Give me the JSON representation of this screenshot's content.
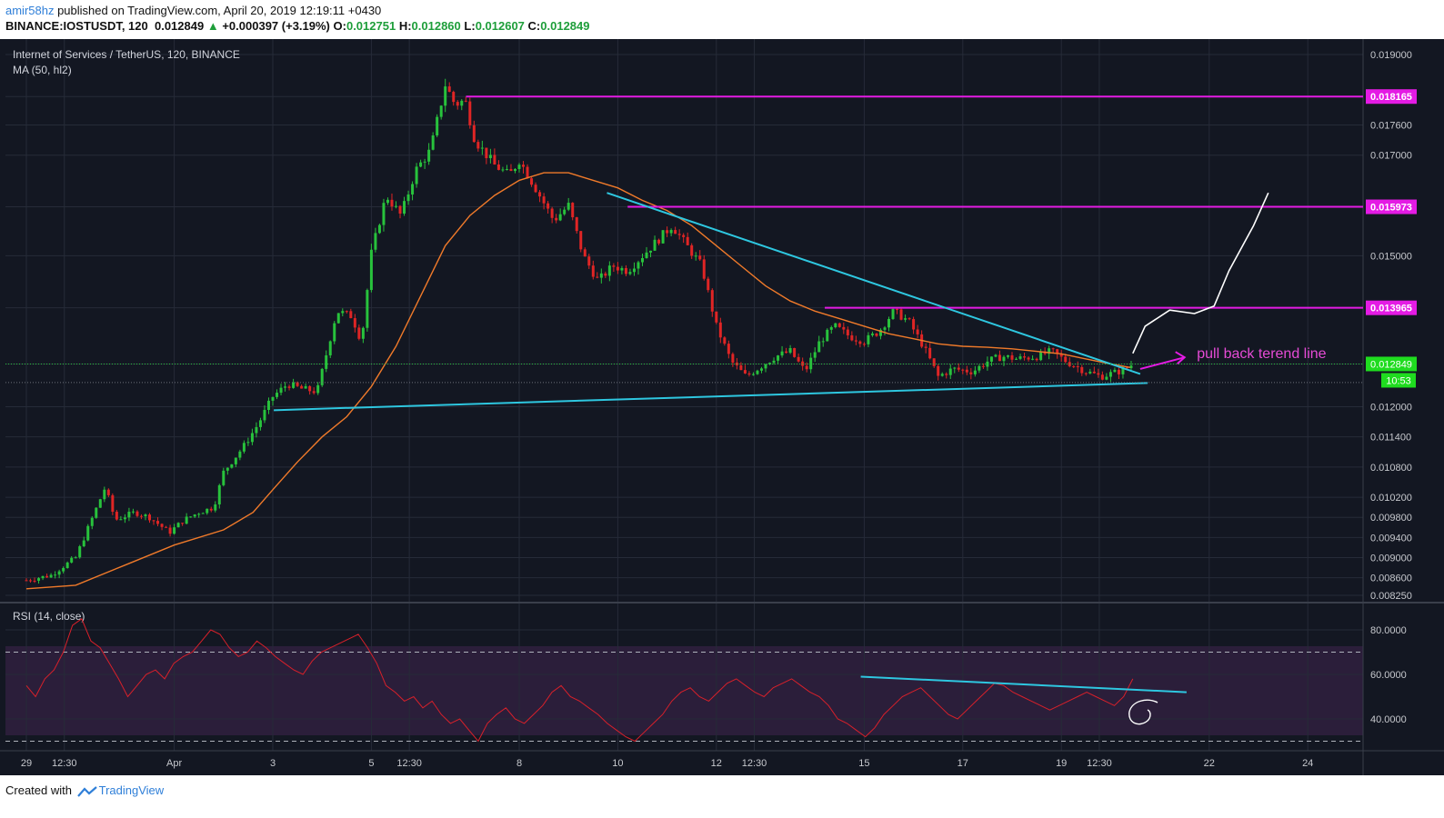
{
  "header": {
    "user": "amir58hz",
    "published": " published on TradingView.com, April 20, 2019 12:19:11 +0430",
    "symbol": "BINANCE:IOSTUSDT, 120",
    "last": "0.012849",
    "arrow": "▲",
    "change": "+0.000397 (+3.19%)",
    "o_label": "O:",
    "o": "0.012751",
    "h_label": "H:",
    "h": "0.012860",
    "l_label": "L:",
    "l": "0.012607",
    "c_label": "C:",
    "c": "0.012849"
  },
  "legend": {
    "title": "Internet of Services / TetherUS, 120, BINANCE",
    "ma": "MA (50, hl2)",
    "rsi": "RSI (14, close)"
  },
  "footer": {
    "created": "Created with",
    "brand": "TradingView"
  },
  "colors": {
    "background": "#131722",
    "up": "#28c23c",
    "down": "#e02525",
    "ma": "#f07a2a",
    "trendline": "#2ec7e0",
    "level": "#e41be4",
    "rsi": "#d8202a",
    "rsi_band": "#2b1e3a",
    "price_tag": "#1fdc1f"
  },
  "chart_data": [
    {
      "type": "candlestick",
      "title": "Internet of Services / TetherUS, 120, BINANCE",
      "ylim": [
        0.00818,
        0.01938
      ],
      "y_ticks": [
        "0.019000",
        "0.018165",
        "0.017600",
        "0.017000",
        "0.015973",
        "0.015000",
        "0.013965",
        "0.012849",
        "0.012000",
        "0.011400",
        "0.010800",
        "0.010200",
        "0.009800",
        "0.009400",
        "0.009000",
        "0.008600",
        "0.008250"
      ],
      "y_tick_values": [
        0.019,
        0.018165,
        0.0176,
        0.017,
        0.015973,
        0.015,
        0.013965,
        0.012849,
        0.012,
        0.0114,
        0.0108,
        0.0102,
        0.0098,
        0.0094,
        0.009,
        0.0086,
        0.00825
      ],
      "x_ticks": [
        "29",
        "12:30",
        "Apr",
        "3",
        "5",
        "12:30",
        "8",
        "10",
        "12",
        "12:30",
        "15",
        "17",
        "19",
        "12:30",
        "22",
        "24"
      ],
      "x_tick_days": [
        0,
        0.77,
        3.0,
        5.0,
        7.0,
        7.77,
        10.0,
        12.0,
        14.0,
        14.77,
        17.0,
        19.0,
        21.0,
        21.77,
        24.0,
        26.0
      ],
      "price_series": [
        [
          0.0,
          0.00855
        ],
        [
          0.5,
          0.00865
        ],
        [
          1.0,
          0.009
        ],
        [
          1.3,
          0.0097
        ],
        [
          1.6,
          0.0104
        ],
        [
          1.8,
          0.00975
        ],
        [
          2.2,
          0.0099
        ],
        [
          2.5,
          0.0098
        ],
        [
          2.9,
          0.0095
        ],
        [
          3.2,
          0.00975
        ],
        [
          3.5,
          0.0099
        ],
        [
          3.8,
          0.01
        ],
        [
          4.0,
          0.0107
        ],
        [
          4.4,
          0.0112
        ],
        [
          4.7,
          0.01165
        ],
        [
          5.0,
          0.0122
        ],
        [
          5.3,
          0.01245
        ],
        [
          5.6,
          0.01235
        ],
        [
          5.9,
          0.0123
        ],
        [
          6.3,
          0.0139
        ],
        [
          6.6,
          0.0138
        ],
        [
          6.8,
          0.0133
        ],
        [
          7.0,
          0.01505
        ],
        [
          7.3,
          0.0162
        ],
        [
          7.6,
          0.0158
        ],
        [
          7.9,
          0.0167
        ],
        [
          8.2,
          0.0171
        ],
        [
          8.5,
          0.0184
        ],
        [
          8.7,
          0.018
        ],
        [
          8.9,
          0.0181
        ],
        [
          9.1,
          0.0173
        ],
        [
          9.5,
          0.0168
        ],
        [
          9.8,
          0.0166
        ],
        [
          10.0,
          0.0169
        ],
        [
          10.3,
          0.0164
        ],
        [
          10.7,
          0.0157
        ],
        [
          11.0,
          0.016
        ],
        [
          11.3,
          0.015
        ],
        [
          11.6,
          0.0145
        ],
        [
          11.9,
          0.0148
        ],
        [
          12.2,
          0.0147
        ],
        [
          12.5,
          0.015
        ],
        [
          12.8,
          0.0153
        ],
        [
          13.1,
          0.0156
        ],
        [
          13.4,
          0.0152
        ],
        [
          13.7,
          0.0148
        ],
        [
          14.0,
          0.0136
        ],
        [
          14.3,
          0.0129
        ],
        [
          14.6,
          0.0126
        ],
        [
          14.9,
          0.0128
        ],
        [
          15.2,
          0.013
        ],
        [
          15.5,
          0.0131
        ],
        [
          15.8,
          0.0127
        ],
        [
          16.1,
          0.0133
        ],
        [
          16.4,
          0.0136
        ],
        [
          16.7,
          0.0134
        ],
        [
          17.0,
          0.0133
        ],
        [
          17.3,
          0.0135
        ],
        [
          17.6,
          0.0139
        ],
        [
          17.9,
          0.0137
        ],
        [
          18.2,
          0.0132
        ],
        [
          18.5,
          0.0126
        ],
        [
          18.8,
          0.01275
        ],
        [
          19.2,
          0.0127
        ],
        [
          19.5,
          0.0129
        ],
        [
          19.8,
          0.013
        ],
        [
          20.1,
          0.01295
        ],
        [
          20.5,
          0.013
        ],
        [
          20.8,
          0.0131
        ],
        [
          21.1,
          0.0129
        ],
        [
          21.5,
          0.0127
        ],
        [
          21.8,
          0.0126
        ],
        [
          22.1,
          0.01268
        ],
        [
          22.3,
          0.01275
        ],
        [
          22.45,
          0.01285
        ]
      ],
      "ma_label": "MA (50, hl2)",
      "ma_series": [
        [
          0.0,
          0.00838
        ],
        [
          1.0,
          0.00845
        ],
        [
          2.0,
          0.00885
        ],
        [
          3.0,
          0.00925
        ],
        [
          4.0,
          0.00955
        ],
        [
          4.6,
          0.0099
        ],
        [
          5.0,
          0.01035
        ],
        [
          5.5,
          0.0109
        ],
        [
          6.0,
          0.0114
        ],
        [
          6.5,
          0.0118
        ],
        [
          7.0,
          0.0124
        ],
        [
          7.5,
          0.0132
        ],
        [
          8.0,
          0.0142
        ],
        [
          8.5,
          0.0152
        ],
        [
          9.0,
          0.0158
        ],
        [
          9.5,
          0.0162
        ],
        [
          10.0,
          0.0165
        ],
        [
          10.5,
          0.01665
        ],
        [
          11.0,
          0.01665
        ],
        [
          11.5,
          0.0165
        ],
        [
          12.0,
          0.01635
        ],
        [
          12.5,
          0.0161
        ],
        [
          13.0,
          0.0159
        ],
        [
          13.5,
          0.0156
        ],
        [
          14.0,
          0.0152
        ],
        [
          14.5,
          0.0148
        ],
        [
          15.0,
          0.0144
        ],
        [
          15.5,
          0.0141
        ],
        [
          16.0,
          0.0139
        ],
        [
          16.5,
          0.01375
        ],
        [
          17.0,
          0.0136
        ],
        [
          17.5,
          0.01345
        ],
        [
          18.0,
          0.01335
        ],
        [
          18.5,
          0.01325
        ],
        [
          19.0,
          0.0132
        ],
        [
          19.5,
          0.01318
        ],
        [
          20.0,
          0.01315
        ],
        [
          20.5,
          0.0131
        ],
        [
          21.0,
          0.01305
        ],
        [
          21.5,
          0.01295
        ],
        [
          22.0,
          0.01285
        ],
        [
          22.4,
          0.01278
        ]
      ],
      "levels": [
        {
          "value": 0.018165,
          "label": "0.018165",
          "from_day": 8.92
        },
        {
          "value": 0.015973,
          "label": "0.015973",
          "from_day": 12.2
        },
        {
          "value": 0.013965,
          "label": "0.013965",
          "from_day": 16.2
        }
      ],
      "trendlines": [
        {
          "from": [
            5.02,
            0.01193
          ],
          "to": [
            22.75,
            0.01247
          ]
        },
        {
          "from": [
            11.78,
            0.01625
          ],
          "to": [
            22.6,
            0.01265
          ]
        }
      ],
      "last_price": {
        "value": 0.012849,
        "label": "0.012849",
        "countdown": "10:53"
      },
      "annotation": "pull back terend line",
      "projection": [
        [
          22.45,
          0.01306
        ],
        [
          22.7,
          0.0136
        ],
        [
          23.2,
          0.01392
        ],
        [
          23.7,
          0.01385
        ],
        [
          24.1,
          0.014
        ],
        [
          24.4,
          0.0147
        ],
        [
          24.9,
          0.0156
        ],
        [
          25.2,
          0.01625
        ]
      ]
    },
    {
      "type": "line",
      "title": "RSI (14, close)",
      "ylim": [
        22,
        87
      ],
      "y_ticks": [
        "80.0000",
        "60.0000",
        "40.0000"
      ],
      "y_tick_values": [
        80,
        60,
        40
      ],
      "band": [
        30,
        70
      ],
      "values": [
        55,
        50,
        58,
        62,
        70,
        82,
        85,
        75,
        72,
        65,
        58,
        50,
        55,
        60,
        62,
        58,
        65,
        68,
        70,
        75,
        80,
        78,
        72,
        68,
        70,
        75,
        72,
        68,
        65,
        62,
        60,
        66,
        70,
        72,
        74,
        76,
        78,
        72,
        65,
        55,
        52,
        48,
        50,
        45,
        48,
        42,
        38,
        40,
        35,
        30,
        38,
        42,
        45,
        40,
        38,
        42,
        46,
        52,
        55,
        50,
        48,
        45,
        42,
        38,
        35,
        32,
        30,
        34,
        38,
        42,
        48,
        52,
        54,
        50,
        48,
        52,
        56,
        58,
        55,
        52,
        50,
        54,
        56,
        58,
        55,
        52,
        50,
        46,
        40,
        38,
        35,
        32,
        36,
        42,
        46,
        50,
        52,
        54,
        50,
        46,
        42,
        40,
        44,
        48,
        52,
        56,
        55,
        52,
        50,
        48,
        46,
        44,
        46,
        48,
        50,
        52,
        50,
        48,
        46,
        50,
        58
      ],
      "trend": {
        "from": [
          0.63,
          59
        ],
        "to": [
          0.87,
          52
        ]
      }
    }
  ]
}
